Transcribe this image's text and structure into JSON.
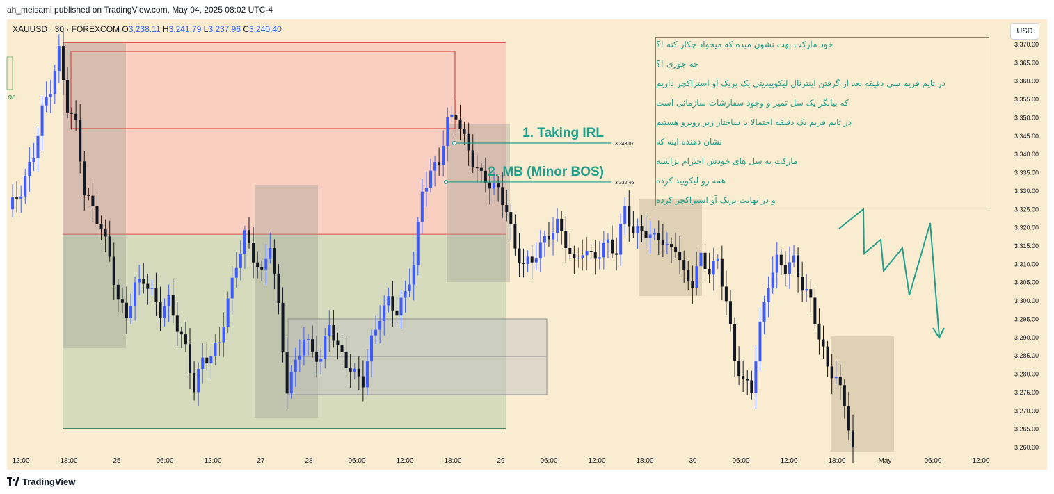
{
  "header": {
    "published_line": "ah_meisami published on TradingView.com, May 04, 2025 08:02 UTC-4",
    "currency_button": "USD"
  },
  "symbol": {
    "name": "XAUUSD · 30 · FOREXCOM",
    "open_label": "O",
    "open": "3,238.11",
    "high_label": "H",
    "high": "3,241.79",
    "low_label": "L",
    "low": "3,237.96",
    "close_label": "C",
    "close": "3,240.40"
  },
  "annotations": {
    "irl_label": "1. Taking IRL",
    "irl_price": "3,343.07",
    "mb_label": "2. MB (Minor BOS)",
    "mb_price": "3,332.46",
    "partial_text": "or"
  },
  "notes": [
    "خود مارکت بهت نشون میده که میخواد چکار کنه !؟",
    "چه جوری !؟",
    "در تایم فریم سی دقیقه بعد از گرفتن اینترنال لیکوییدیتی یک بریک آو استراکچر داریم",
    "که بیانگر یک سل تمیز و وجود سفارشات سازمانی است",
    "در تایم فریم یک دقیقه احتمالا با ساختار زیر روبرو هستیم",
    "نشان دهنده اینه که",
    "مارکت به سل های خودش احترام نزاشته",
    "همه رو لیکویید کرده",
    "و در نهایت بریک آو استراکچر کرده"
  ],
  "footer": {
    "brand": "TradingView"
  },
  "colors": {
    "background": "#faecd1",
    "bull": "#3d5cff",
    "bear": "#131722",
    "premium_zone": "#f8cfc0",
    "discount_zone": "#d6dbbd",
    "annotation": "#1f9e89",
    "box_gray": "#a9a9a9",
    "box_tan": "#c9bba2"
  },
  "chart_data": {
    "type": "candlestick",
    "symbol": "XAUUSD",
    "timeframe": "30",
    "y_ticks": [
      3370,
      3365,
      3360,
      3355,
      3350,
      3345,
      3340,
      3335,
      3330,
      3325,
      3320,
      3315,
      3310,
      3305,
      3300,
      3295,
      3290,
      3285,
      3280,
      3275,
      3270,
      3265,
      3260
    ],
    "y_tick_labels": [
      "3,370.00",
      "3,365.00",
      "3,360.00",
      "3,355.00",
      "3,350.00",
      "3,345.00",
      "3,340.00",
      "3,335.00",
      "3,330.00",
      "3,325.00",
      "3,320.00",
      "3,315.00",
      "3,310.00",
      "3,305.00",
      "3,300.00",
      "3,295.00",
      "3,290.00",
      "3,285.00",
      "3,280.00",
      "3,275.00",
      "3,270.00",
      "3,265.00",
      "3,260.00"
    ],
    "ylim": [
      3258.5,
      3371.5
    ],
    "x_tick_labels": [
      "12:00",
      "18:00",
      "25",
      "06:00",
      "12:00",
      "27",
      "28",
      "06:00",
      "12:00",
      "18:00",
      "29",
      "06:00",
      "12:00",
      "18:00",
      "30",
      "06:00",
      "12:00",
      "18:00",
      "May",
      "06:00",
      "12:00"
    ],
    "anchors": [
      [
        0,
        3325
      ],
      [
        3,
        3330
      ],
      [
        6,
        3340
      ],
      [
        8,
        3352
      ],
      [
        10,
        3358
      ],
      [
        12,
        3368
      ],
      [
        14,
        3353
      ],
      [
        16,
        3348
      ],
      [
        18,
        3330
      ],
      [
        20,
        3325
      ],
      [
        22,
        3320
      ],
      [
        24,
        3312
      ],
      [
        26,
        3300
      ],
      [
        28,
        3296
      ],
      [
        30,
        3304
      ],
      [
        32,
        3306
      ],
      [
        34,
        3302
      ],
      [
        36,
        3297
      ],
      [
        38,
        3300
      ],
      [
        40,
        3293
      ],
      [
        42,
        3287
      ],
      [
        44,
        3276
      ],
      [
        46,
        3284
      ],
      [
        48,
        3285
      ],
      [
        50,
        3289
      ],
      [
        52,
        3300
      ],
      [
        54,
        3310
      ],
      [
        56,
        3318
      ],
      [
        58,
        3312
      ],
      [
        60,
        3307
      ],
      [
        62,
        3316
      ],
      [
        64,
        3298
      ],
      [
        66,
        3276
      ],
      [
        68,
        3283
      ],
      [
        70,
        3290
      ],
      [
        72,
        3286
      ],
      [
        74,
        3284
      ],
      [
        76,
        3294
      ],
      [
        78,
        3287
      ],
      [
        80,
        3283
      ],
      [
        82,
        3280
      ],
      [
        84,
        3278
      ],
      [
        86,
        3289
      ],
      [
        88,
        3296
      ],
      [
        90,
        3300
      ],
      [
        92,
        3297
      ],
      [
        94,
        3302
      ],
      [
        96,
        3310
      ],
      [
        98,
        3330
      ],
      [
        100,
        3335
      ],
      [
        102,
        3338
      ],
      [
        104,
        3349
      ],
      [
        106,
        3351
      ],
      [
        108,
        3344
      ],
      [
        110,
        3338
      ],
      [
        112,
        3334
      ],
      [
        114,
        3332
      ],
      [
        116,
        3330
      ],
      [
        118,
        3325
      ],
      [
        120,
        3314
      ],
      [
        122,
        3310
      ],
      [
        124,
        3311
      ],
      [
        126,
        3315
      ],
      [
        128,
        3318
      ],
      [
        130,
        3321
      ],
      [
        132,
        3316
      ],
      [
        134,
        3310
      ],
      [
        136,
        3314
      ],
      [
        138,
        3312
      ],
      [
        140,
        3313
      ],
      [
        142,
        3316
      ],
      [
        144,
        3313
      ],
      [
        146,
        3326
      ],
      [
        148,
        3318
      ],
      [
        150,
        3320
      ],
      [
        152,
        3317
      ],
      [
        154,
        3318
      ],
      [
        156,
        3314
      ],
      [
        158,
        3315
      ],
      [
        160,
        3307
      ],
      [
        162,
        3305
      ],
      [
        164,
        3312
      ],
      [
        166,
        3308
      ],
      [
        168,
        3311
      ],
      [
        170,
        3300
      ],
      [
        172,
        3284
      ],
      [
        174,
        3278
      ],
      [
        176,
        3276
      ],
      [
        178,
        3293
      ],
      [
        180,
        3305
      ],
      [
        182,
        3311
      ],
      [
        184,
        3309
      ],
      [
        186,
        3311
      ],
      [
        188,
        3304
      ],
      [
        190,
        3300
      ],
      [
        192,
        3290
      ],
      [
        194,
        3282
      ],
      [
        196,
        3279
      ],
      [
        198,
        3272
      ],
      [
        200,
        3260
      ]
    ],
    "levels": {
      "premium_top": 3370.5,
      "equilibrium": 3318.2,
      "discount_bottom": 3265.2,
      "irl": 3343.07,
      "minor_bos": 3332.46
    }
  }
}
